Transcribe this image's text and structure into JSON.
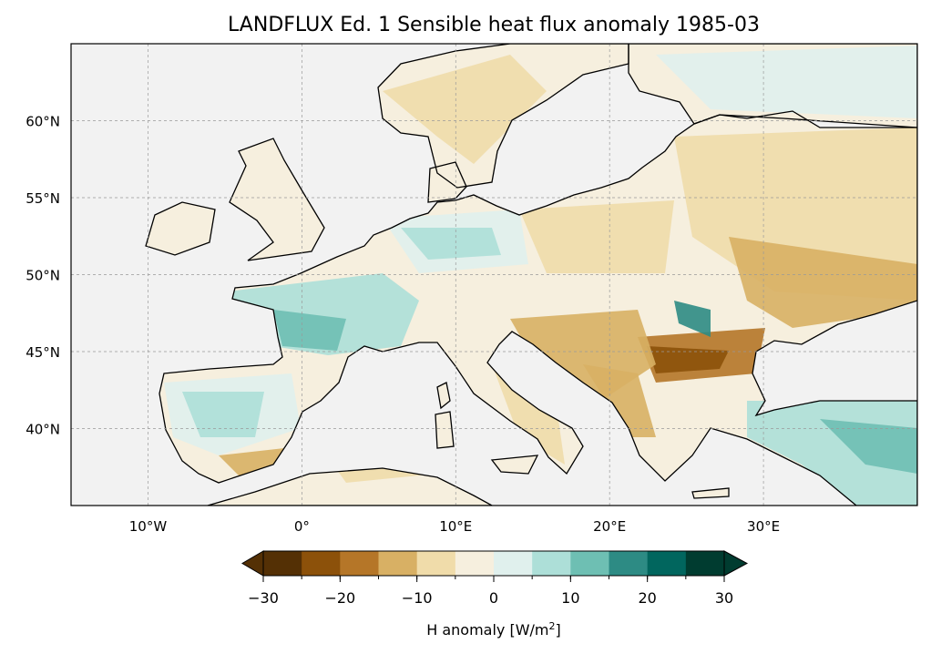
{
  "title": "LANDFLUX Ed. 1 Sensible heat flux anomaly 1985-03",
  "map": {
    "extent": {
      "lon": [
        -15,
        40
      ],
      "lat": [
        35,
        65
      ]
    },
    "lat_ticks": [
      {
        "v": 60,
        "label": "60°N"
      },
      {
        "v": 55,
        "label": "55°N"
      },
      {
        "v": 50,
        "label": "50°N"
      },
      {
        "v": 45,
        "label": "45°N"
      },
      {
        "v": 40,
        "label": "40°N"
      }
    ],
    "lon_ticks": [
      {
        "v": -10,
        "label": "10°W"
      },
      {
        "v": 0,
        "label": "0°"
      },
      {
        "v": 10,
        "label": "10°E"
      },
      {
        "v": 20,
        "label": "20°E"
      },
      {
        "v": 30,
        "label": "30°E"
      }
    ],
    "ocean_color": "#f2f2f2"
  },
  "colorbar": {
    "label": "H anomaly [W/m",
    "label_sup": "2",
    "label_end": "]",
    "levels": [
      -30,
      -25,
      -20,
      -15,
      -10,
      -5,
      0,
      5,
      10,
      15,
      20,
      25,
      30
    ],
    "tick_labels": [
      {
        "v": -30,
        "label": "−30"
      },
      {
        "v": -20,
        "label": "−20"
      },
      {
        "v": -10,
        "label": "−10"
      },
      {
        "v": 0,
        "label": "0"
      },
      {
        "v": 10,
        "label": "10"
      },
      {
        "v": 20,
        "label": "20"
      },
      {
        "v": 30,
        "label": "30"
      }
    ],
    "colors": [
      "#543005",
      "#8c510a",
      "#b57628",
      "#d8b064",
      "#f0dcaa",
      "#f6efde",
      "#e0f0ed",
      "#addfd8",
      "#6ebfb3",
      "#2d8b84",
      "#01665e",
      "#003c30"
    ]
  }
}
